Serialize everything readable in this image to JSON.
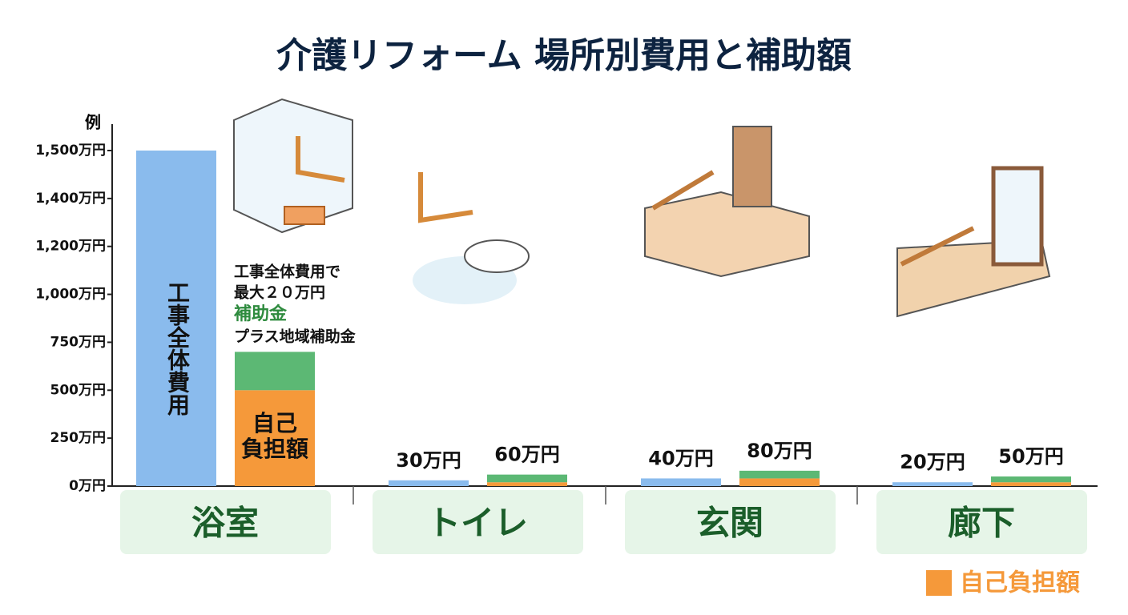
{
  "chart_data": {
    "type": "bar",
    "title": "介護リフォーム 場所別費用と補助額",
    "y_label": "例",
    "categories": [
      "浴室",
      "トイレ",
      "玄関",
      "廊下"
    ],
    "series": [
      {
        "name": "工事全体費用",
        "color": "#8abbed",
        "values": [
          1500,
          30,
          40,
          20
        ],
        "value_labels": [
          null,
          "30万円",
          "40万円",
          "20万円"
        ]
      },
      {
        "name": "自己負担額",
        "color": "#f5993a",
        "values": [
          500,
          20,
          40,
          20
        ]
      },
      {
        "name": "補助金",
        "color": "#5cb874",
        "values": [
          200,
          40,
          40,
          30
        ]
      }
    ],
    "stack_total_labels": [
      null,
      "60万円",
      "80万円",
      "50万円"
    ],
    "bar_text": [
      "自己",
      "負担額"
    ],
    "annotation": [
      "工事全体費用で",
      "最大２０万円",
      "プラス地域補助金"
    ],
    "ylim": [
      0,
      1500
    ],
    "yticks": [
      {
        "value": 0,
        "label": "0万円"
      },
      {
        "value": 250,
        "label": "250万円"
      },
      {
        "value": 500,
        "label": "500万円"
      },
      {
        "value": 750,
        "label": "750万円"
      },
      {
        "value": 1000,
        "label": "1,000万円"
      },
      {
        "value": 1200,
        "label": "1,200万円"
      },
      {
        "value": 1400,
        "label": "1,400万円"
      },
      {
        "value": 1500,
        "label": "1,500万円"
      }
    ],
    "legend": "bottom-right"
  }
}
